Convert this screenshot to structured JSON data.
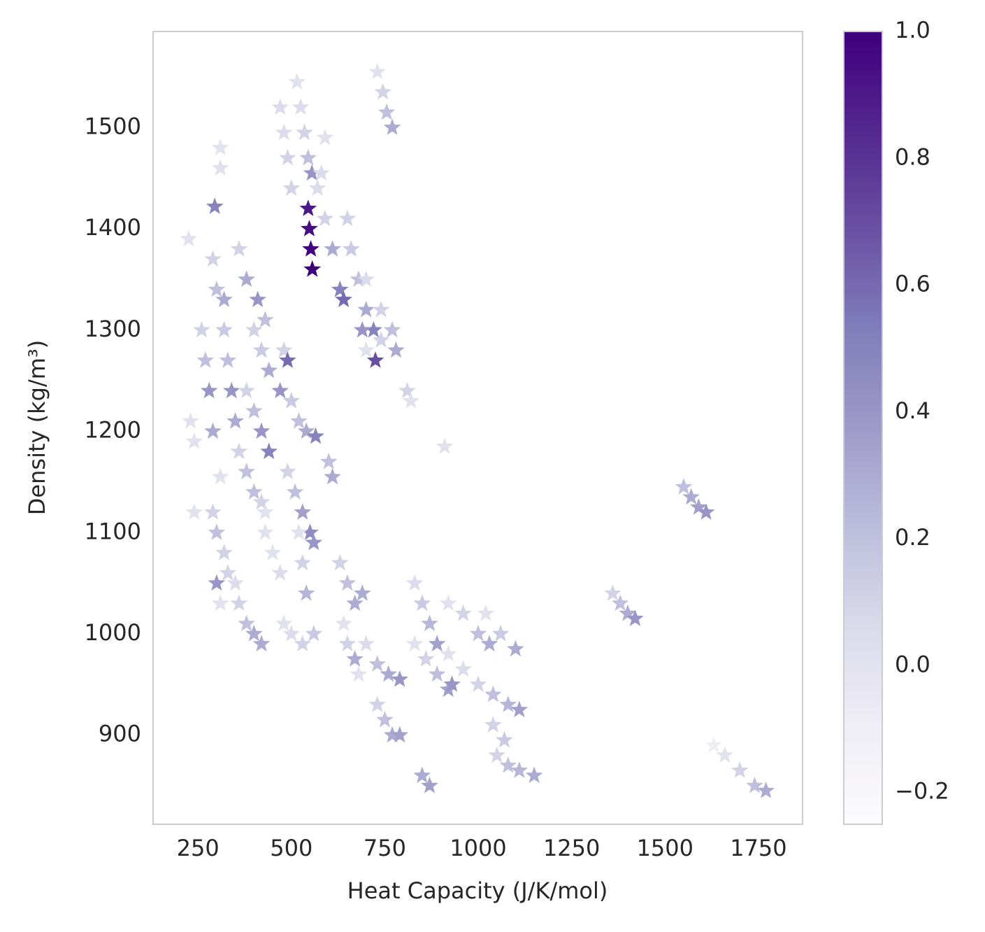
{
  "chart_data": {
    "type": "scatter",
    "marker": "star",
    "colormap": "Purples",
    "xlabel": "Heat Capacity (J/K/mol)",
    "ylabel": "Density (kg/m³)",
    "xlim": [
      130,
      1868
    ],
    "ylim": [
      812,
      1595
    ],
    "xticks": [
      250,
      500,
      750,
      1000,
      1250,
      1500,
      1750
    ],
    "yticks": [
      900,
      1000,
      1100,
      1200,
      1300,
      1400,
      1500
    ],
    "clim": [
      -0.25,
      1.0
    ],
    "cticks": [
      {
        "value": -0.2,
        "label": "−0.2"
      },
      {
        "value": 0,
        "label": "0.0"
      },
      0.2,
      0.4,
      0.6,
      0.8,
      {
        "value": 1,
        "label": "1.0"
      }
    ],
    "x": [
      515,
      525,
      535,
      545,
      555,
      545,
      548,
      552,
      556,
      470,
      480,
      490,
      500,
      730,
      745,
      755,
      770,
      310,
      310,
      295,
      225,
      590,
      580,
      570,
      590,
      610,
      630,
      640,
      650,
      660,
      680,
      700,
      720,
      725,
      740,
      780,
      810,
      820,
      700,
      740,
      770,
      700,
      690,
      290,
      300,
      320,
      360,
      380,
      410,
      430,
      260,
      270,
      280,
      290,
      230,
      240,
      320,
      330,
      340,
      350,
      400,
      420,
      440,
      470,
      480,
      490,
      380,
      400,
      420,
      440,
      500,
      520,
      540,
      565,
      360,
      380,
      400,
      420,
      430,
      310,
      240,
      490,
      510,
      530,
      550,
      560,
      600,
      610,
      290,
      300,
      320,
      330,
      430,
      450,
      470,
      520,
      530,
      540,
      300,
      310,
      350,
      360,
      380,
      400,
      420,
      480,
      500,
      530,
      560,
      630,
      650,
      670,
      690,
      640,
      650,
      670,
      680,
      700,
      730,
      760,
      790,
      830,
      850,
      870,
      890,
      830,
      860,
      890,
      920,
      930,
      920,
      960,
      1000,
      1030,
      1020,
      1060,
      1100,
      920,
      960,
      1000,
      1040,
      1080,
      1110,
      730,
      750,
      770,
      790,
      1040,
      1070,
      1050,
      1080,
      1110,
      1150,
      850,
      870,
      1360,
      1380,
      1400,
      1420,
      1550,
      1570,
      1590,
      1610,
      1630,
      1660,
      1700,
      1740,
      1770,
      910
    ],
    "y": [
      1545,
      1520,
      1495,
      1470,
      1455,
      1420,
      1400,
      1380,
      1360,
      1520,
      1495,
      1470,
      1440,
      1555,
      1535,
      1515,
      1500,
      1480,
      1460,
      1422,
      1390,
      1490,
      1455,
      1440,
      1410,
      1380,
      1340,
      1330,
      1410,
      1380,
      1350,
      1320,
      1300,
      1270,
      1290,
      1280,
      1240,
      1230,
      1350,
      1320,
      1300,
      1280,
      1300,
      1370,
      1340,
      1330,
      1380,
      1350,
      1330,
      1310,
      1300,
      1270,
      1240,
      1200,
      1210,
      1190,
      1300,
      1270,
      1240,
      1210,
      1300,
      1280,
      1260,
      1240,
      1280,
      1270,
      1240,
      1220,
      1200,
      1180,
      1230,
      1210,
      1200,
      1195,
      1180,
      1160,
      1140,
      1130,
      1120,
      1155,
      1120,
      1160,
      1140,
      1120,
      1100,
      1090,
      1170,
      1155,
      1120,
      1100,
      1080,
      1060,
      1100,
      1080,
      1060,
      1100,
      1070,
      1040,
      1050,
      1030,
      1050,
      1030,
      1010,
      1000,
      990,
      1010,
      1000,
      990,
      1000,
      1070,
      1050,
      1030,
      1040,
      1010,
      990,
      975,
      960,
      990,
      970,
      960,
      955,
      1050,
      1030,
      1010,
      990,
      990,
      975,
      960,
      945,
      950,
      1030,
      1020,
      1000,
      990,
      1020,
      1000,
      985,
      980,
      965,
      950,
      940,
      930,
      925,
      930,
      915,
      900,
      900,
      910,
      895,
      880,
      870,
      865,
      860,
      860,
      850,
      1040,
      1030,
      1020,
      1015,
      1145,
      1135,
      1125,
      1120,
      890,
      880,
      865,
      850,
      845,
      1185
    ],
    "c": [
      0.0,
      0.05,
      0.1,
      0.2,
      0.4,
      0.9,
      0.95,
      0.98,
      1.0,
      0.05,
      0.05,
      0.1,
      0.1,
      0.0,
      0.1,
      0.2,
      0.3,
      0.0,
      0.0,
      0.5,
      0.0,
      0.0,
      0.05,
      0.05,
      0.1,
      0.3,
      0.5,
      0.6,
      0.1,
      0.15,
      0.2,
      0.3,
      0.5,
      0.7,
      0.1,
      0.3,
      0.1,
      0.0,
      0.05,
      0.1,
      0.2,
      0.0,
      0.4,
      0.1,
      0.2,
      0.3,
      0.1,
      0.3,
      0.4,
      0.2,
      0.1,
      0.2,
      0.4,
      0.3,
      0.0,
      0.0,
      0.15,
      0.2,
      0.4,
      0.3,
      0.1,
      0.15,
      0.3,
      0.4,
      0.1,
      0.6,
      0.1,
      0.2,
      0.4,
      0.5,
      0.15,
      0.2,
      0.3,
      0.5,
      0.1,
      0.2,
      0.2,
      0.1,
      0.0,
      0.0,
      0.0,
      0.1,
      0.2,
      0.35,
      0.45,
      0.4,
      0.2,
      0.3,
      0.1,
      0.2,
      0.1,
      0.1,
      0.0,
      0.0,
      0.05,
      0.0,
      0.1,
      0.25,
      0.4,
      0.0,
      0.05,
      0.1,
      0.2,
      0.3,
      0.3,
      0.0,
      0.05,
      0.1,
      0.15,
      0.1,
      0.2,
      0.3,
      0.3,
      0.0,
      0.1,
      0.3,
      0.0,
      0.05,
      0.2,
      0.3,
      0.4,
      0.05,
      0.15,
      0.25,
      0.35,
      0.0,
      0.1,
      0.2,
      0.35,
      0.4,
      0.0,
      0.1,
      0.2,
      0.3,
      0.0,
      0.15,
      0.3,
      0.0,
      0.05,
      0.1,
      0.2,
      0.25,
      0.35,
      0.1,
      0.2,
      0.3,
      0.35,
      0.1,
      0.15,
      0.1,
      0.2,
      0.25,
      0.3,
      0.3,
      0.35,
      0.1,
      0.2,
      0.3,
      0.4,
      0.2,
      0.3,
      0.35,
      0.4,
      -0.1,
      0.0,
      0.1,
      0.2,
      0.3,
      0.0
    ]
  }
}
